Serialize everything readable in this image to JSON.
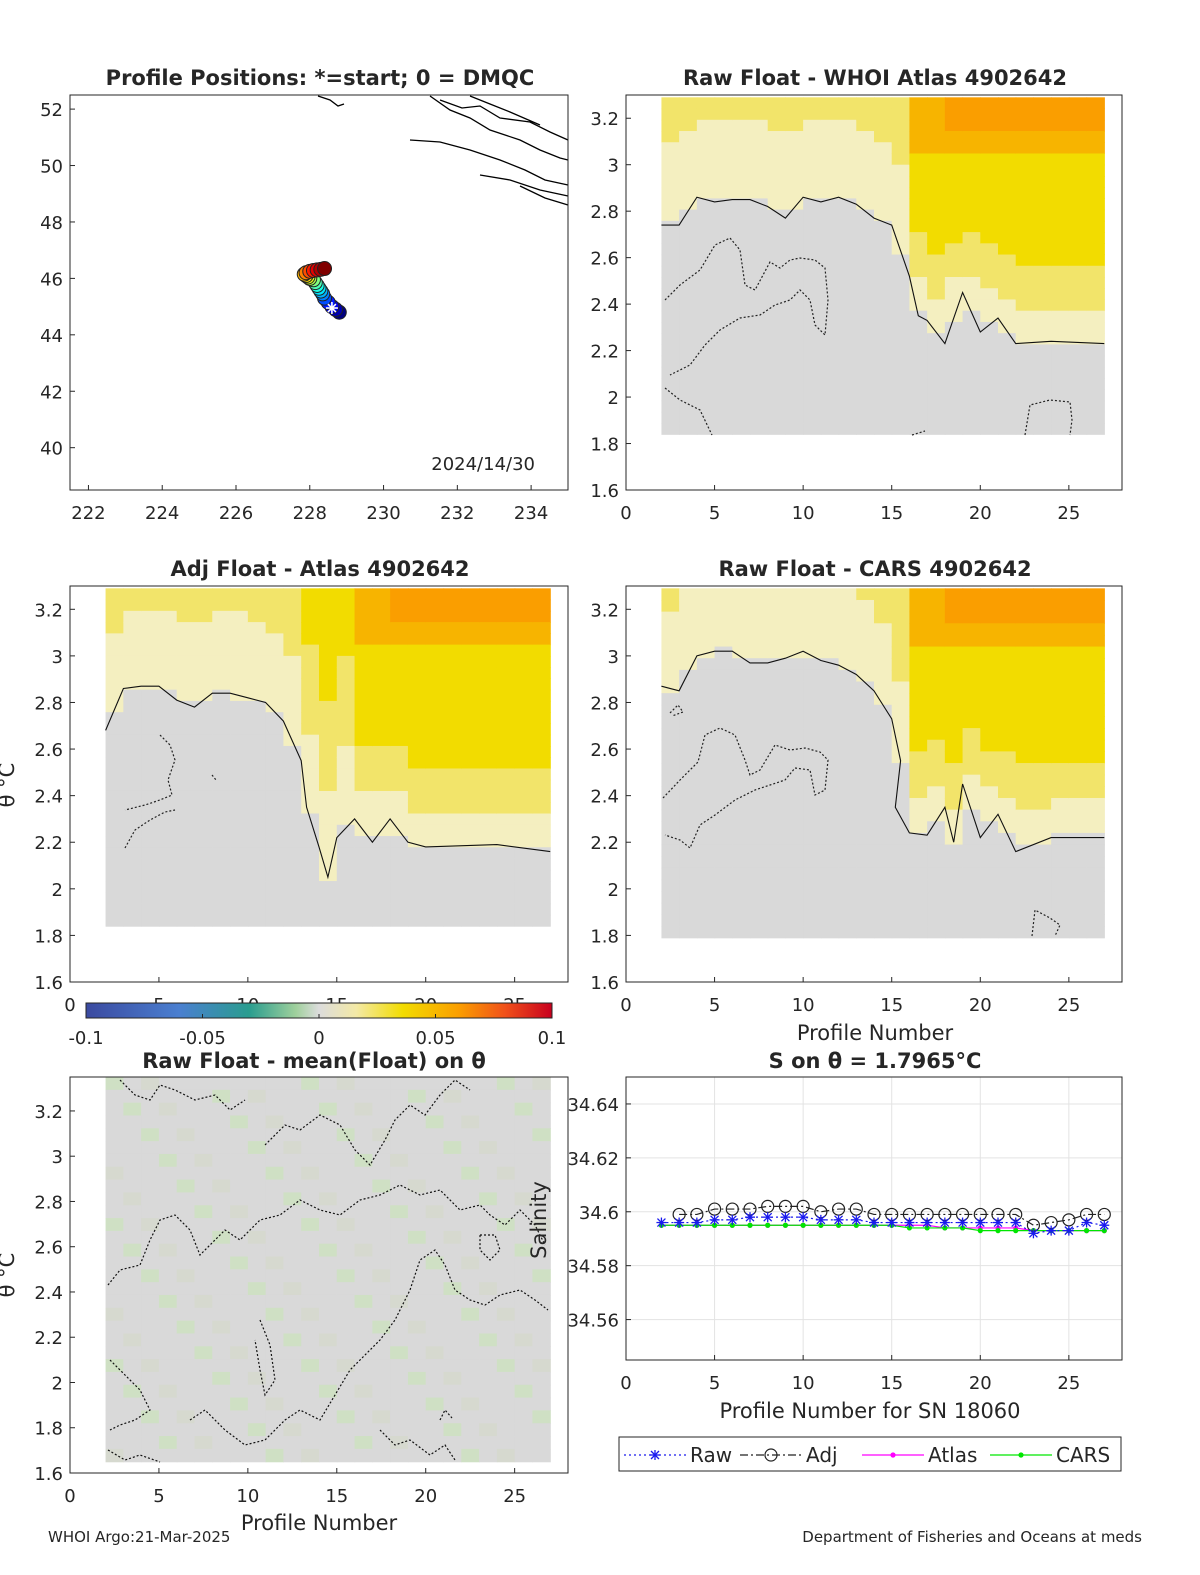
{
  "footer": {
    "left": "WHOI Argo:21-Mar-2025",
    "right": "Department of Fisheries and Oceans at meds"
  },
  "colors": {
    "gray": "#d9d9d9",
    "yellow": "#f2dc00",
    "orange": "#fa9e00",
    "light_yellow": "#f4efc0",
    "raw": "#1a1aee",
    "adj": "#222222",
    "atlas": "#ff00ff",
    "cars": "#00e600"
  },
  "chart_data": [
    {
      "id": "map",
      "type": "scatter",
      "title": "Profile Positions: *=start; 0 = DMQC",
      "annotation": "2024/14/30",
      "xlim": [
        221.5,
        235
      ],
      "ylim": [
        38.5,
        52.5
      ],
      "xticks": [
        222,
        224,
        226,
        228,
        230,
        232,
        234
      ],
      "yticks": [
        40,
        42,
        44,
        46,
        48,
        50,
        52
      ],
      "colormap": "jet",
      "x": [
        228.8,
        228.7,
        228.6,
        228.5,
        228.4,
        228.35,
        228.3,
        228.25,
        228.2,
        228.15,
        228.1,
        228.0,
        227.95,
        227.9,
        227.85,
        227.9,
        228.0,
        228.1,
        228.2,
        228.3,
        228.4
      ],
      "y": [
        44.8,
        44.9,
        45.0,
        45.15,
        45.3,
        45.45,
        45.55,
        45.65,
        45.75,
        45.85,
        45.95,
        46.0,
        46.05,
        46.1,
        46.15,
        46.2,
        46.25,
        46.28,
        46.3,
        46.32,
        46.35
      ],
      "start": [
        228.6,
        44.95
      ]
    },
    {
      "id": "raw_atlas",
      "type": "heatmap",
      "title": "Raw Float - WHOI Atlas  4902642",
      "xlim": [
        0,
        28
      ],
      "ylim": [
        1.6,
        3.3
      ],
      "xticks": [
        0,
        5,
        10,
        15,
        20,
        25
      ],
      "yticks": [
        1.6,
        1.8,
        2,
        2.2,
        2.4,
        2.6,
        2.8,
        3,
        3.2
      ],
      "field_x": [
        2,
        27
      ],
      "field_y": [
        1.84,
        3.29
      ],
      "contour_zero": [
        [
          2,
          2.74
        ],
        [
          3,
          2.74
        ],
        [
          4,
          2.86
        ],
        [
          5,
          2.84
        ],
        [
          6,
          2.85
        ],
        [
          7,
          2.85
        ],
        [
          8,
          2.82
        ],
        [
          9,
          2.77
        ],
        [
          10,
          2.86
        ],
        [
          11,
          2.84
        ],
        [
          12,
          2.86
        ],
        [
          13,
          2.83
        ],
        [
          14,
          2.77
        ],
        [
          15,
          2.74
        ],
        [
          16,
          2.52
        ],
        [
          16.5,
          2.35
        ],
        [
          17,
          2.33
        ],
        [
          18,
          2.23
        ],
        [
          19,
          2.45
        ],
        [
          20,
          2.28
        ],
        [
          21,
          2.34
        ],
        [
          22,
          2.23
        ],
        [
          24,
          2.24
        ],
        [
          27,
          2.23
        ]
      ]
    },
    {
      "id": "adj_atlas",
      "type": "heatmap",
      "title": "Adj Float - Atlas  4902642",
      "ylabel": "θ °C",
      "xlim": [
        0,
        28
      ],
      "ylim": [
        1.6,
        3.3
      ],
      "xticks": [
        0,
        5,
        10,
        15,
        20,
        25
      ],
      "yticks": [
        1.6,
        1.8,
        2,
        2.2,
        2.4,
        2.6,
        2.8,
        3,
        3.2
      ],
      "field_x": [
        2,
        27
      ],
      "field_y": [
        1.84,
        3.29
      ],
      "contour_zero": [
        [
          2,
          2.68
        ],
        [
          3,
          2.86
        ],
        [
          4,
          2.87
        ],
        [
          5,
          2.87
        ],
        [
          6,
          2.81
        ],
        [
          7,
          2.78
        ],
        [
          8,
          2.84
        ],
        [
          9,
          2.84
        ],
        [
          10,
          2.82
        ],
        [
          11,
          2.8
        ],
        [
          12,
          2.72
        ],
        [
          13,
          2.55
        ],
        [
          13.3,
          2.35
        ],
        [
          14,
          2.18
        ],
        [
          14.5,
          2.05
        ],
        [
          15,
          2.22
        ],
        [
          16,
          2.3
        ],
        [
          17,
          2.2
        ],
        [
          18,
          2.3
        ],
        [
          19,
          2.2
        ],
        [
          20,
          2.18
        ],
        [
          24,
          2.19
        ],
        [
          27,
          2.16
        ]
      ],
      "colorbar": {
        "ticks": [
          "-0.1",
          "-0.05",
          "0",
          "0.05",
          "0.1"
        ],
        "range": [
          -0.1,
          0.1
        ]
      }
    },
    {
      "id": "raw_cars",
      "type": "heatmap",
      "title": "Raw Float - CARS  4902642",
      "xlabel": "Profile Number",
      "xlim": [
        0,
        28
      ],
      "ylim": [
        1.6,
        3.3
      ],
      "xticks": [
        0,
        5,
        10,
        15,
        20,
        25
      ],
      "yticks": [
        1.6,
        1.8,
        2,
        2.2,
        2.4,
        2.6,
        2.8,
        3,
        3.2
      ],
      "field_x": [
        2,
        27
      ],
      "field_y": [
        1.79,
        3.29
      ],
      "contour_zero": [
        [
          2,
          2.87
        ],
        [
          3,
          2.85
        ],
        [
          4,
          3.0
        ],
        [
          5,
          3.02
        ],
        [
          6,
          3.02
        ],
        [
          7,
          2.97
        ],
        [
          8,
          2.97
        ],
        [
          9,
          2.99
        ],
        [
          10,
          3.02
        ],
        [
          11,
          2.98
        ],
        [
          12,
          2.96
        ],
        [
          13,
          2.92
        ],
        [
          14,
          2.85
        ],
        [
          15,
          2.73
        ],
        [
          15.5,
          2.55
        ],
        [
          15.2,
          2.35
        ],
        [
          16,
          2.24
        ],
        [
          17,
          2.23
        ],
        [
          18,
          2.35
        ],
        [
          18.5,
          2.2
        ],
        [
          19,
          2.45
        ],
        [
          20,
          2.22
        ],
        [
          21,
          2.32
        ],
        [
          22,
          2.16
        ],
        [
          24,
          2.22
        ],
        [
          27,
          2.22
        ]
      ]
    },
    {
      "id": "raw_mean",
      "type": "heatmap",
      "title": "Raw Float - mean(Float) on θ",
      "xlabel": "Profile Number",
      "ylabel": "θ °C",
      "xlim": [
        0,
        28
      ],
      "ylim": [
        1.6,
        3.35
      ],
      "xticks": [
        0,
        5,
        10,
        15,
        20,
        25
      ],
      "yticks": [
        1.6,
        1.8,
        2,
        2.2,
        2.4,
        2.6,
        2.8,
        3,
        3.2
      ],
      "field_x": [
        2,
        27
      ],
      "field_y": [
        1.65,
        3.35
      ]
    },
    {
      "id": "salinity",
      "type": "line",
      "title": "S on θ = 1.7965°C",
      "xlabel": "Profile Number for SN 18060",
      "ylabel": "Salinity",
      "xlim": [
        0,
        28
      ],
      "ylim": [
        34.545,
        34.65
      ],
      "xticks": [
        0,
        5,
        10,
        15,
        20,
        25
      ],
      "yticks": [
        34.56,
        34.58,
        34.6,
        34.62,
        34.64
      ],
      "grid": true,
      "legend": "bottom",
      "x": [
        2,
        3,
        4,
        5,
        6,
        7,
        8,
        9,
        10,
        11,
        12,
        13,
        14,
        15,
        16,
        17,
        18,
        19,
        20,
        21,
        22,
        23,
        24,
        25,
        26,
        27
      ],
      "series": [
        {
          "name": "Raw",
          "values": [
            34.596,
            34.596,
            34.596,
            34.597,
            34.597,
            34.598,
            34.598,
            34.598,
            34.598,
            34.597,
            34.597,
            34.597,
            34.596,
            34.596,
            34.596,
            34.596,
            34.596,
            34.596,
            34.596,
            34.596,
            34.596,
            34.592,
            34.593,
            34.593,
            34.596,
            34.595
          ]
        },
        {
          "name": "Adj",
          "values": [
            null,
            34.599,
            34.599,
            34.601,
            34.601,
            34.601,
            34.602,
            34.602,
            34.602,
            34.6,
            34.601,
            34.601,
            34.599,
            34.599,
            34.599,
            34.599,
            34.599,
            34.599,
            34.599,
            34.599,
            34.599,
            34.595,
            34.596,
            34.597,
            34.599,
            34.599
          ]
        },
        {
          "name": "Atlas",
          "values": [
            34.595,
            34.595,
            34.595,
            34.595,
            34.595,
            34.595,
            34.595,
            34.595,
            34.595,
            34.595,
            34.595,
            34.595,
            34.595,
            34.595,
            34.595,
            34.595,
            34.594,
            34.594,
            34.594,
            34.594,
            34.594,
            34.593,
            34.593,
            34.593,
            34.593,
            34.593
          ]
        },
        {
          "name": "CARS",
          "values": [
            34.595,
            34.595,
            34.595,
            34.595,
            34.595,
            34.595,
            34.595,
            34.595,
            34.595,
            34.595,
            34.595,
            34.595,
            34.595,
            34.595,
            34.594,
            34.594,
            34.594,
            34.594,
            34.593,
            34.593,
            34.593,
            34.593,
            34.593,
            34.593,
            34.593,
            34.593
          ]
        }
      ]
    }
  ]
}
